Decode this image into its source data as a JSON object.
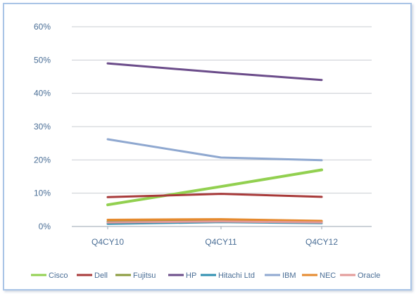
{
  "chart_data": {
    "type": "line",
    "title": "",
    "xlabel": "",
    "ylabel": "",
    "categories": [
      "Q4CY10",
      "Q4CY11",
      "Q4CY12"
    ],
    "ylim": [
      0,
      60
    ],
    "yticks": [
      "0%",
      "10%",
      "20%",
      "30%",
      "40%",
      "50%",
      "60%"
    ],
    "grid": true,
    "legend_position": "bottom",
    "series": [
      {
        "name": "Cisco",
        "color": "#92d050",
        "values": [
          6.5,
          12.0,
          17.0
        ]
      },
      {
        "name": "Dell",
        "color": "#a83a3a",
        "values": [
          8.8,
          9.8,
          8.9
        ]
      },
      {
        "name": "Fujitsu",
        "color": "#8a9a3c",
        "values": [
          1.5,
          2.0,
          1.5
        ]
      },
      {
        "name": "HP",
        "color": "#6b4c8a",
        "values": [
          49.0,
          46.2,
          44.0
        ]
      },
      {
        "name": "Hitachi Ltd",
        "color": "#2f8fb0",
        "values": [
          0.8,
          1.3,
          1.0
        ]
      },
      {
        "name": "IBM",
        "color": "#8fa8d0",
        "values": [
          26.2,
          20.7,
          19.9
        ]
      },
      {
        "name": "NEC",
        "color": "#e58a2e",
        "values": [
          2.0,
          2.2,
          1.7
        ]
      },
      {
        "name": "Oracle",
        "color": "#e39a98",
        "values": [
          1.2,
          1.5,
          1.2
        ]
      }
    ]
  }
}
